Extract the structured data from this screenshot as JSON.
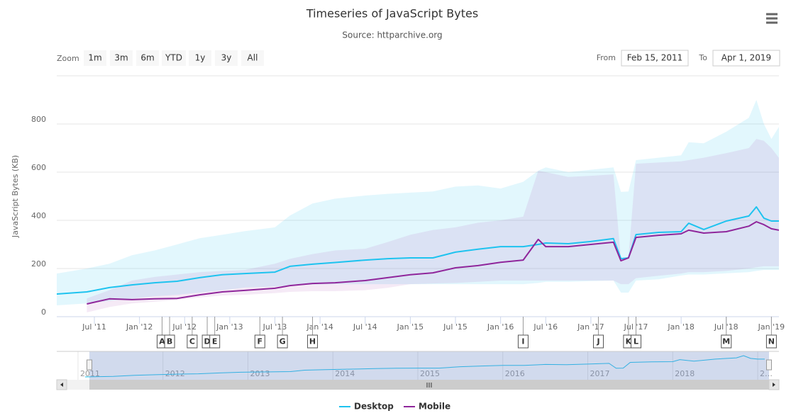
{
  "chart_data": {
    "type": "line",
    "title": "Timeseries of JavaScript Bytes",
    "subtitle": "Source: httparchive.org",
    "toolbar": {
      "zoom_label": "Zoom",
      "buttons": [
        "1m",
        "3m",
        "6m",
        "YTD",
        "1y",
        "3y",
        "All"
      ],
      "from_label": "From",
      "from_value": "Feb 15, 2011",
      "to_label": "To",
      "to_value": "Apr 1, 2019"
    },
    "y_label": "JavaScript Bytes (KB)",
    "grid": true,
    "ylim": [
      0,
      1000
    ],
    "yticks": [
      0,
      200,
      400,
      600,
      800
    ],
    "xlim": [
      "2011-02",
      "2019-02"
    ],
    "xticks": [
      {
        "value": "2011-07",
        "label": "Jul '11"
      },
      {
        "value": "2012-01",
        "label": "Jan '12"
      },
      {
        "value": "2012-07",
        "label": "Jul '12"
      },
      {
        "value": "2013-01",
        "label": "Jan '13"
      },
      {
        "value": "2013-07",
        "label": "Jul '13"
      },
      {
        "value": "2014-01",
        "label": "Jan '14"
      },
      {
        "value": "2014-07",
        "label": "Jul '14"
      },
      {
        "value": "2015-01",
        "label": "Jan '15"
      },
      {
        "value": "2015-07",
        "label": "Jul '15"
      },
      {
        "value": "2016-01",
        "label": "Jan '16"
      },
      {
        "value": "2016-07",
        "label": "Jul '16"
      },
      {
        "value": "2017-01",
        "label": "Jan '17"
      },
      {
        "value": "2017-07",
        "label": "Jul '17"
      },
      {
        "value": "2018-01",
        "label": "Jan '18"
      },
      {
        "value": "2018-07",
        "label": "Jul '18"
      },
      {
        "value": "2019-01",
        "label": "Jan '19"
      }
    ],
    "x": [
      "2011-02",
      "2011-06",
      "2011-09",
      "2011-12",
      "2012-03",
      "2012-06",
      "2012-09",
      "2012-12",
      "2013-03",
      "2013-07",
      "2013-09",
      "2013-12",
      "2014-03",
      "2014-07",
      "2014-10",
      "2015-01",
      "2015-04",
      "2015-07",
      "2015-10",
      "2016-01",
      "2016-04",
      "2016-06",
      "2016-07",
      "2016-10",
      "2017-01",
      "2017-04",
      "2017-05",
      "2017-06",
      "2017-07",
      "2017-10",
      "2018-01",
      "2018-02",
      "2018-04",
      "2018-07",
      "2018-10",
      "2018-11",
      "2018-12",
      "2019-01",
      "2019-02"
    ],
    "series": [
      {
        "name": "Desktop",
        "color": "#1ec3ef",
        "band_color": "rgba(30,195,239,0.13)",
        "values": [
          94,
          103,
          121,
          132,
          141,
          147,
          162,
          174,
          179,
          185,
          209,
          218,
          225,
          235,
          241,
          244,
          244,
          268,
          280,
          291,
          291,
          300,
          306,
          303,
          312,
          324,
          241,
          244,
          341,
          350,
          353,
          388,
          362,
          397,
          418,
          456,
          409,
          397,
          397
        ],
        "range_low": [
          47,
          55,
          65,
          75,
          85,
          91,
          100,
          110,
          121,
          125,
          130,
          133,
          135,
          135,
          135,
          135,
          135,
          135,
          135,
          135,
          135,
          140,
          145,
          145,
          148,
          150,
          100,
          100,
          150,
          155,
          171,
          175,
          175,
          180,
          185,
          190,
          194,
          194,
          194
        ],
        "range_high": [
          179,
          200,
          220,
          255,
          275,
          300,
          326,
          340,
          355,
          371,
          420,
          470,
          490,
          503,
          510,
          515,
          520,
          540,
          545,
          532,
          560,
          606,
          620,
          600,
          610,
          620,
          518,
          520,
          650,
          660,
          670,
          724,
          720,
          768,
          826,
          900,
          800,
          738,
          788
        ]
      },
      {
        "name": "Mobile",
        "color": "#8f269b",
        "band_color": "rgba(160,50,170,0.10)",
        "values": [
          null,
          53,
          74,
          71,
          74,
          76,
          91,
          103,
          109,
          118,
          129,
          138,
          141,
          150,
          162,
          174,
          182,
          203,
          212,
          226,
          235,
          321,
          291,
          291,
          300,
          309,
          232,
          244,
          329,
          338,
          344,
          359,
          347,
          353,
          376,
          394,
          382,
          365,
          359
        ],
        "range_low": [
          null,
          18,
          40,
          55,
          62,
          70,
          80,
          88,
          91,
          98,
          103,
          106,
          106,
          110,
          120,
          135,
          138,
          140,
          145,
          150,
          150,
          150,
          150,
          150,
          150,
          150,
          135,
          135,
          160,
          170,
          179,
          185,
          185,
          190,
          200,
          205,
          209,
          209,
          209
        ],
        "range_high": [
          null,
          76,
          110,
          150,
          165,
          175,
          185,
          190,
          194,
          220,
          240,
          260,
          275,
          282,
          310,
          340,
          360,
          371,
          390,
          400,
          415,
          606,
          600,
          580,
          585,
          591,
          238,
          245,
          635,
          640,
          645,
          650,
          660,
          679,
          700,
          738,
          730,
          700,
          659
        ]
      }
    ],
    "flags": [
      {
        "x": "2012-04",
        "title": "A"
      },
      {
        "x": "2012-05",
        "title": "B"
      },
      {
        "x": "2012-08",
        "title": "C"
      },
      {
        "x": "2012-10",
        "title": "D"
      },
      {
        "x": "2012-11",
        "title": "E"
      },
      {
        "x": "2013-05",
        "title": "F"
      },
      {
        "x": "2013-08",
        "title": "G"
      },
      {
        "x": "2013-12",
        "title": "H"
      },
      {
        "x": "2016-04",
        "title": "I"
      },
      {
        "x": "2017-02",
        "title": "J"
      },
      {
        "x": "2017-06",
        "title": "K"
      },
      {
        "x": "2017-07",
        "title": "L"
      },
      {
        "x": "2018-07",
        "title": "M"
      },
      {
        "x": "2019-01",
        "title": "N"
      }
    ],
    "navigator": {
      "xlim": [
        "2010-10",
        "2019-04"
      ],
      "xticks": [
        {
          "value": "2011-01",
          "label": "2011"
        },
        {
          "value": "2012-01",
          "label": "2012"
        },
        {
          "value": "2013-01",
          "label": "2013"
        },
        {
          "value": "2014-01",
          "label": "2014"
        },
        {
          "value": "2015-01",
          "label": "2015"
        },
        {
          "value": "2016-01",
          "label": "2016"
        },
        {
          "value": "2017-01",
          "label": "2017"
        },
        {
          "value": "2018-01",
          "label": "2018"
        },
        {
          "value": "2019-01",
          "label": "2…"
        }
      ]
    }
  }
}
